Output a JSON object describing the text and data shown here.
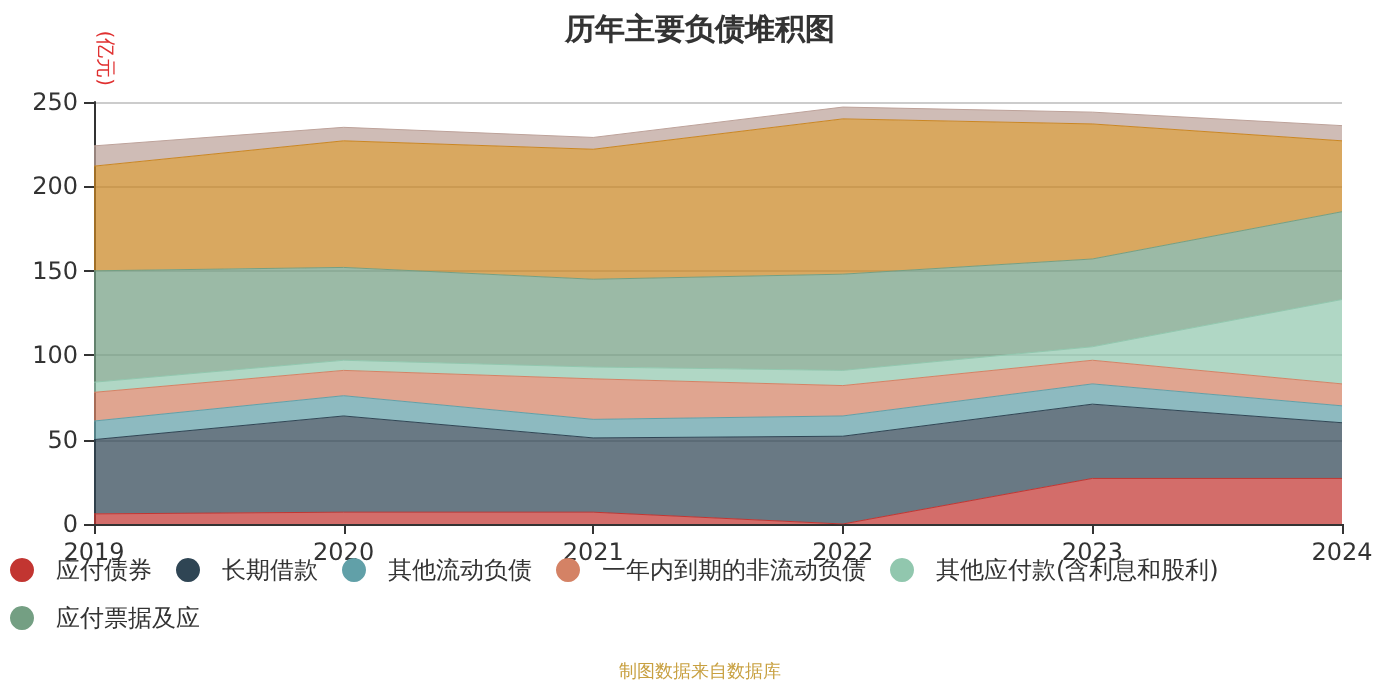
{
  "chart_data": {
    "type": "area",
    "stacked": true,
    "title": "历年主要负债堆积图",
    "ylabel": "(亿元)",
    "annotations": [
      "制图数据来自数据库"
    ],
    "categories": [
      "2019",
      "2020",
      "2021",
      "2022",
      "2023",
      "2024"
    ],
    "ylim": [
      0,
      250
    ],
    "yticks": [
      0,
      50,
      100,
      150,
      200,
      250
    ],
    "grid": "y",
    "legend": "bottom",
    "marker": "none",
    "series": [
      {
        "name": "应付债券",
        "color": "#c23531",
        "values": [
          6,
          7,
          7,
          0,
          27,
          27
        ]
      },
      {
        "name": "长期借款",
        "color": "#2f4554",
        "values": [
          44,
          57,
          44,
          52,
          44,
          33
        ]
      },
      {
        "name": "其他流动负债",
        "color": "#61a0a8",
        "values": [
          11,
          12,
          11,
          12,
          12,
          10
        ]
      },
      {
        "name": "一年内到期的非流动负债",
        "color": "#d48265",
        "values": [
          17,
          15,
          24,
          18,
          14,
          13
        ]
      },
      {
        "name": "其他应付款(含利息和股利)",
        "color": "#91c7ae",
        "values": [
          6,
          6,
          7,
          9,
          8,
          50
        ]
      },
      {
        "name": "应付票据及应",
        "color": "#749f83",
        "values": [
          66,
          55,
          52,
          57,
          52,
          52
        ]
      },
      {
        "color": "#ca8622",
        "values": [
          62,
          75,
          77,
          92,
          80,
          42
        ]
      },
      {
        "color": "#bda29a",
        "values": [
          12,
          8,
          7,
          7,
          7,
          9
        ]
      }
    ]
  }
}
